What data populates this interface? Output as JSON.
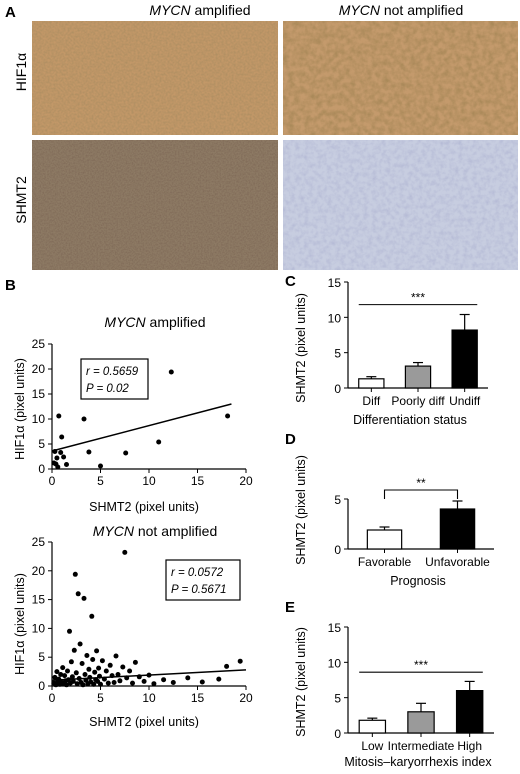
{
  "figure": {
    "panel_a": {
      "label": "A",
      "columns": [
        {
          "gene": "MYCN",
          "suffix": " amplified"
        },
        {
          "gene": "MYCN",
          "suffix": " not amplified"
        }
      ],
      "rows": [
        "HIF1α",
        "SHMT2"
      ]
    },
    "panel_b": {
      "label": "B"
    },
    "panel_c": {
      "label": "C"
    },
    "panel_d": {
      "label": "D"
    },
    "panel_e": {
      "label": "E"
    }
  },
  "chart_data": [
    {
      "id": "B1",
      "type": "scatter",
      "title": {
        "gene": "MYCN",
        "suffix": " amplified"
      },
      "xlabel": "SHMT2 (pixel units)",
      "ylabel": "HIF1α (pixel units)",
      "xlim": [
        0,
        20
      ],
      "ylim": [
        0,
        25
      ],
      "xticks": [
        0,
        5,
        10,
        15,
        20
      ],
      "yticks": [
        0,
        5,
        10,
        15,
        20,
        25
      ],
      "annotation": {
        "r": "r = 0.5659",
        "p": "P = 0.02"
      },
      "points": [
        [
          0.2,
          1.2
        ],
        [
          0.3,
          3.5
        ],
        [
          0.4,
          1.0
        ],
        [
          0.5,
          2.2
        ],
        [
          0.6,
          0.4
        ],
        [
          0.7,
          10.6
        ],
        [
          0.9,
          3.3
        ],
        [
          1.0,
          6.4
        ],
        [
          1.2,
          2.4
        ],
        [
          1.5,
          0.9
        ],
        [
          3.3,
          10.0
        ],
        [
          3.8,
          3.4
        ],
        [
          5.0,
          0.6
        ],
        [
          7.6,
          3.2
        ],
        [
          11.0,
          5.4
        ],
        [
          12.3,
          19.4
        ],
        [
          18.1,
          10.6
        ]
      ],
      "fit": [
        [
          0,
          3.6
        ],
        [
          18.5,
          13.0
        ]
      ]
    },
    {
      "id": "B2",
      "type": "scatter",
      "title": {
        "gene": "MYCN",
        "suffix": " not amplified"
      },
      "xlabel": "SHMT2 (pixel units)",
      "ylabel": "HIF1α (pixel units)",
      "xlim": [
        0,
        20
      ],
      "ylim": [
        0,
        25
      ],
      "xticks": [
        0,
        5,
        10,
        15,
        20
      ],
      "yticks": [
        0,
        5,
        10,
        15,
        20,
        25
      ],
      "annotation": {
        "r": "r = 0.0572",
        "p": "P = 0.5671"
      },
      "points": [
        [
          0.2,
          0.5
        ],
        [
          0.3,
          1.5
        ],
        [
          0.4,
          0.2
        ],
        [
          0.5,
          2.5
        ],
        [
          0.6,
          0.8
        ],
        [
          0.7,
          1.2
        ],
        [
          0.8,
          0.3
        ],
        [
          0.9,
          2.0
        ],
        [
          1.0,
          0.6
        ],
        [
          1.1,
          3.2
        ],
        [
          1.2,
          0.4
        ],
        [
          1.3,
          1.8
        ],
        [
          1.4,
          0.9
        ],
        [
          1.5,
          0.2
        ],
        [
          1.6,
          2.6
        ],
        [
          1.7,
          1.1
        ],
        [
          1.8,
          9.5
        ],
        [
          1.9,
          0.5
        ],
        [
          2.0,
          4.2
        ],
        [
          2.1,
          1.6
        ],
        [
          2.2,
          0.8
        ],
        [
          2.3,
          6.2
        ],
        [
          2.4,
          19.4
        ],
        [
          2.5,
          2.3
        ],
        [
          2.6,
          0.4
        ],
        [
          2.7,
          16.0
        ],
        [
          2.8,
          1.3
        ],
        [
          2.9,
          7.3
        ],
        [
          3.0,
          0.6
        ],
        [
          3.1,
          3.9
        ],
        [
          3.2,
          0.2
        ],
        [
          3.3,
          15.2
        ],
        [
          3.4,
          2.0
        ],
        [
          3.5,
          1.0
        ],
        [
          3.6,
          5.3
        ],
        [
          3.7,
          0.4
        ],
        [
          3.8,
          2.9
        ],
        [
          3.9,
          1.5
        ],
        [
          4.0,
          0.7
        ],
        [
          4.1,
          12.1
        ],
        [
          4.2,
          4.6
        ],
        [
          4.3,
          0.3
        ],
        [
          4.4,
          2.4
        ],
        [
          4.5,
          1.1
        ],
        [
          4.6,
          6.1
        ],
        [
          4.7,
          0.8
        ],
        [
          4.8,
          3.1
        ],
        [
          4.9,
          1.7
        ],
        [
          5.0,
          0.3
        ],
        [
          5.2,
          4.4
        ],
        [
          5.4,
          1.2
        ],
        [
          5.6,
          2.6
        ],
        [
          5.8,
          0.5
        ],
        [
          6.0,
          3.6
        ],
        [
          6.2,
          1.8
        ],
        [
          6.4,
          0.6
        ],
        [
          6.6,
          5.2
        ],
        [
          6.8,
          2.0
        ],
        [
          7.0,
          0.9
        ],
        [
          7.3,
          3.3
        ],
        [
          7.5,
          23.2
        ],
        [
          7.7,
          1.4
        ],
        [
          8.0,
          2.6
        ],
        [
          8.3,
          0.5
        ],
        [
          8.6,
          4.1
        ],
        [
          9.0,
          1.6
        ],
        [
          9.5,
          0.8
        ],
        [
          10.0,
          1.9
        ],
        [
          10.5,
          0.4
        ],
        [
          11.5,
          1.1
        ],
        [
          12.5,
          0.6
        ],
        [
          14.0,
          1.4
        ],
        [
          15.5,
          0.7
        ],
        [
          17.2,
          1.2
        ],
        [
          18.0,
          3.4
        ],
        [
          19.4,
          4.3
        ]
      ],
      "fit": [
        [
          0,
          1.0
        ],
        [
          20,
          2.8
        ]
      ]
    },
    {
      "id": "C",
      "type": "bar",
      "categories": [
        "Diff",
        "Poorly diff",
        "Undiff"
      ],
      "values": [
        1.3,
        3.1,
        8.2
      ],
      "errors": [
        0.3,
        0.5,
        2.2
      ],
      "colors": [
        "#ffffff",
        "#9a9a9a",
        "#000000"
      ],
      "xlabel": "Differentiation status",
      "ylabel": "SHMT2 (pixel units)",
      "ylim": [
        0,
        15
      ],
      "yticks": [
        0,
        5,
        10,
        15
      ],
      "significance": {
        "text": "***",
        "from": 0,
        "to": 2,
        "y": 11.8,
        "style": "line"
      }
    },
    {
      "id": "D",
      "type": "bar",
      "categories": [
        "Favorable",
        "Unfavorable"
      ],
      "values": [
        1.9,
        4.0
      ],
      "errors": [
        0.3,
        0.8
      ],
      "colors": [
        "#ffffff",
        "#000000"
      ],
      "xlabel": "Prognosis",
      "ylabel": "SHMT2 (pixel units)",
      "ylim": [
        0,
        5
      ],
      "yticks": [
        0,
        5
      ],
      "significance": {
        "text": "**",
        "from": 0,
        "to": 1,
        "y": 5.9,
        "style": "bracket"
      }
    },
    {
      "id": "E",
      "type": "bar",
      "categories": [
        "Low",
        "Intermediate",
        "High"
      ],
      "values": [
        1.8,
        3.0,
        6.0
      ],
      "errors": [
        0.3,
        1.2,
        1.3
      ],
      "colors": [
        "#ffffff",
        "#9a9a9a",
        "#000000"
      ],
      "xlabel": "Mitosis–karyorrhexis index",
      "ylabel": "SHMT2 (pixel units)",
      "ylim": [
        0,
        15
      ],
      "yticks": [
        0,
        5,
        10,
        15
      ],
      "significance": {
        "text": "***",
        "from": 0,
        "to": 2,
        "y": 8.6,
        "style": "line"
      }
    }
  ]
}
